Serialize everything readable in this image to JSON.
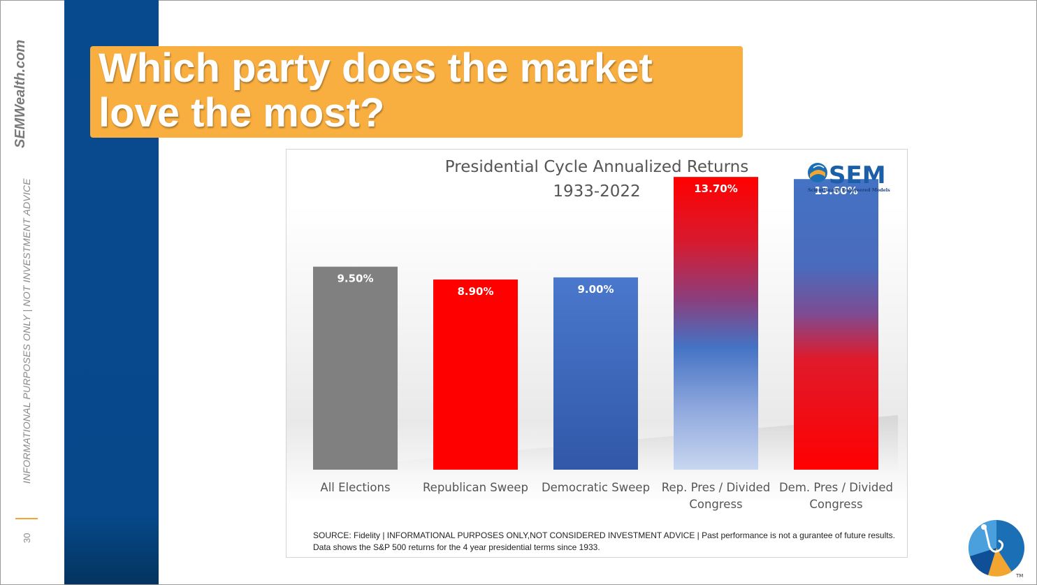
{
  "sidebar": {
    "brand": "SEMWealth.com",
    "disclaimer": "INFORMATIONAL PURPOSES ONLY | NOT INVESTMENT ADVICE",
    "page_number": "30"
  },
  "slide": {
    "title_line1": "Which party does the market",
    "title_line2": "love the most?"
  },
  "logo": {
    "name": "SEM",
    "tagline": "Scientifically Engineered Models"
  },
  "corner_logo": {
    "mark": "TM"
  },
  "chart_data": {
    "type": "bar",
    "title_line1": "Presidential Cycle Annualized Returns",
    "title_line2": "1933-2022",
    "categories": [
      "All Elections",
      "Republican Sweep",
      "Democratic Sweep",
      "Rep. Pres / Divided Congress",
      "Dem. Pres / Divided Congress"
    ],
    "category_lines": [
      [
        "All Elections"
      ],
      [
        "Republican Sweep"
      ],
      [
        "Democratic Sweep"
      ],
      [
        "Rep. Pres / Divided",
        "Congress"
      ],
      [
        "Dem. Pres / Divided",
        "Congress"
      ]
    ],
    "values": [
      9.5,
      8.9,
      9.0,
      13.7,
      13.6
    ],
    "labels": [
      "9.50%",
      "8.90%",
      "9.00%",
      "13.70%",
      "13.60%"
    ],
    "ylim": [
      0,
      14
    ],
    "grid": false,
    "colors": {
      "gray": "#808080",
      "red": "#ff0000",
      "blue": "#4472c4",
      "blue_dark": "#3058a8",
      "light_blue": "#c3d2ee"
    },
    "source": "SOURCE: Fidelity | INFORMATIONAL PURPOSES ONLY,NOT CONSIDERED INVESTMENT ADVICE | Past performance is not a gurantee of future results. Data shows the S&P 500 returns for the 4 year presidential terms since 1933."
  }
}
